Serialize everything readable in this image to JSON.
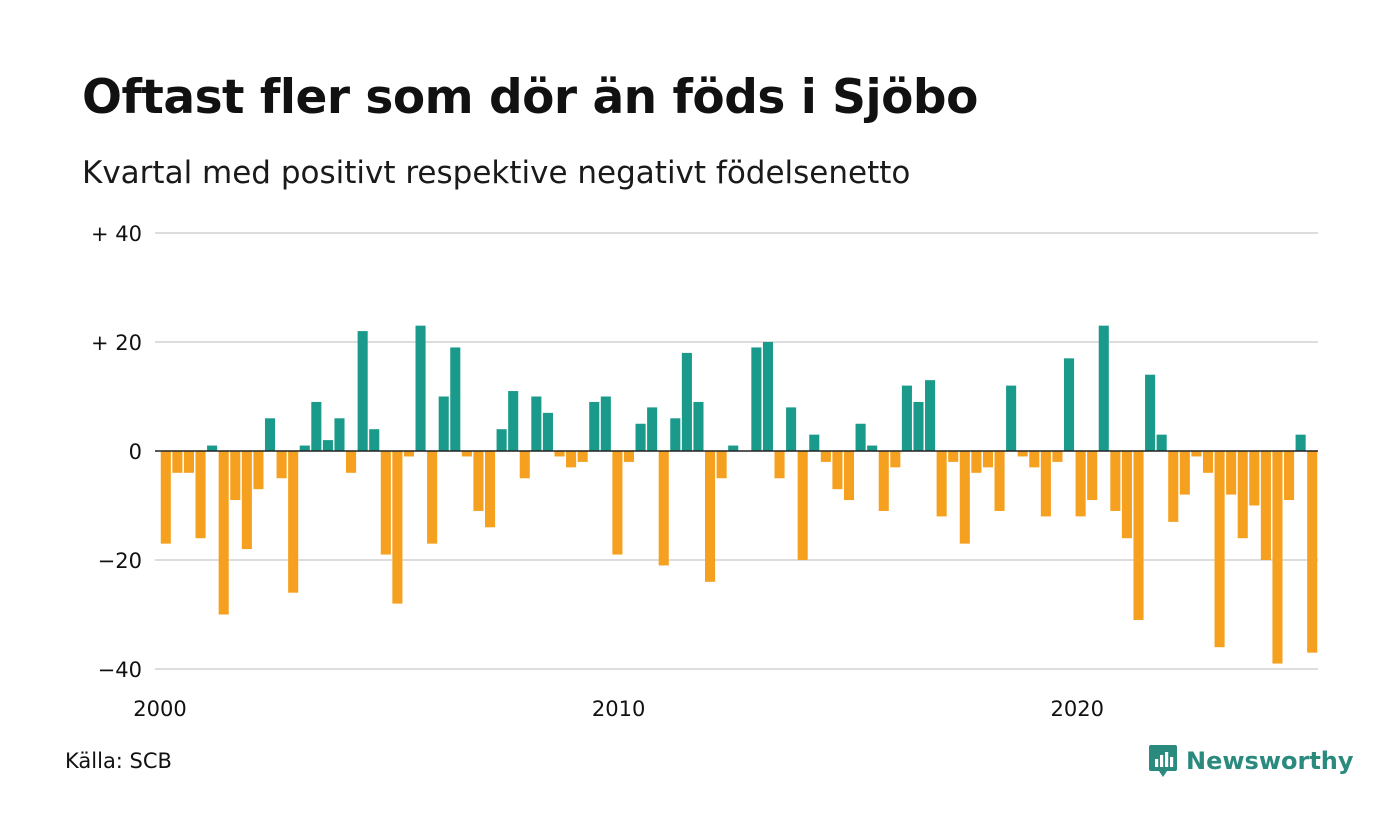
{
  "title": "Oftast fler som dör än föds i Sjöbo",
  "subtitle": "Kvartal med positivt respektive negativt födelsenetto",
  "source": "Källa: SCB",
  "brand": "Newsworthy",
  "colors": {
    "positive": "#1a9a8a",
    "negative": "#f5a01e",
    "grid": "#dddddd",
    "zero": "#222222",
    "brand": "#2a8a7e"
  },
  "chart_data": {
    "type": "bar",
    "ylim": [
      -40,
      40
    ],
    "yticks": [
      {
        "value": 40,
        "label": "+ 40"
      },
      {
        "value": 20,
        "label": "+ 20"
      },
      {
        "value": 0,
        "label": "0"
      },
      {
        "value": -20,
        "label": "−20"
      },
      {
        "value": -40,
        "label": "−40"
      }
    ],
    "xlim": [
      2000,
      2025.25
    ],
    "xticks": [
      {
        "value": 2000,
        "label": "2000"
      },
      {
        "value": 2010,
        "label": "2010"
      },
      {
        "value": 2020,
        "label": "2020"
      }
    ],
    "grid": true,
    "quarters_start": "2000-Q1",
    "values": [
      -17,
      -4,
      -4,
      -16,
      1,
      -30,
      -9,
      -18,
      -7,
      6,
      -5,
      -26,
      1,
      9,
      2,
      6,
      -4,
      22,
      4,
      -19,
      -28,
      -1,
      23,
      -17,
      10,
      19,
      -1,
      -11,
      -14,
      4,
      11,
      -5,
      10,
      7,
      -1,
      -3,
      -2,
      9,
      10,
      -19,
      -2,
      5,
      8,
      -21,
      6,
      18,
      9,
      -24,
      -5,
      1,
      0,
      19,
      20,
      -5,
      8,
      -20,
      3,
      -2,
      -7,
      -9,
      5,
      1,
      -11,
      -3,
      12,
      9,
      13,
      -12,
      -2,
      -17,
      -4,
      -3,
      -11,
      12,
      -1,
      -3,
      -12,
      -2,
      17,
      -12,
      -9,
      23,
      -11,
      -16,
      -31,
      14,
      3,
      -13,
      -8,
      -1,
      -4,
      -36,
      -8,
      -16,
      -10,
      -20,
      -39,
      -9,
      3,
      -37
    ]
  }
}
